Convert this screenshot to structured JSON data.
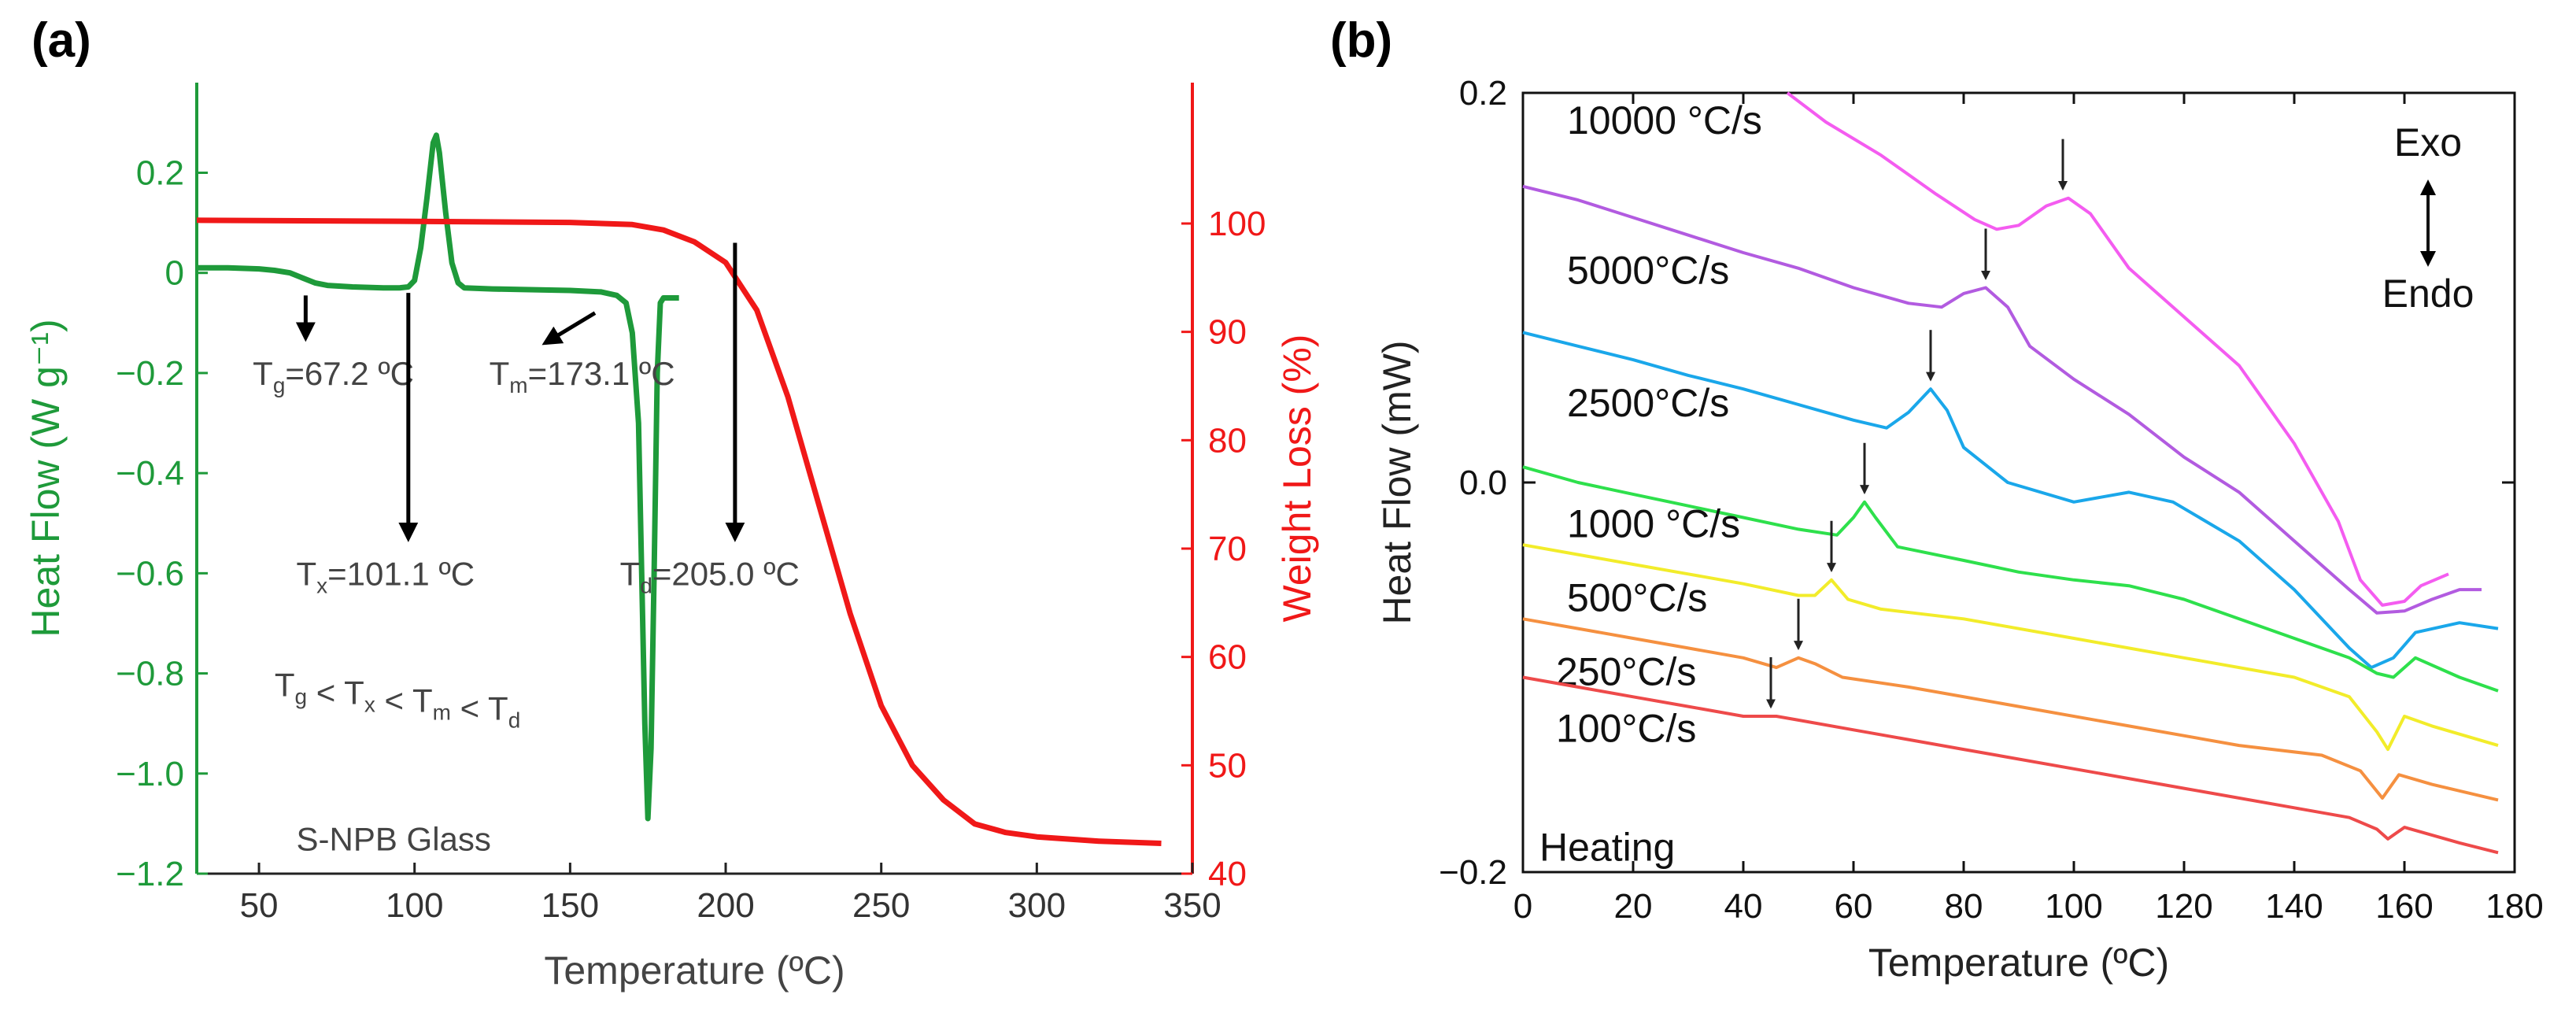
{
  "chart_data": [
    {
      "panel_label": "(a)",
      "type": "line",
      "xlabel": "Temperature (ºC)",
      "ylabel_left": "Heat Flow (W g⁻¹)",
      "ylabel_right": "Weight Loss (%)",
      "xlim": [
        30,
        350
      ],
      "ylim_left": [
        -1.2,
        0.38
      ],
      "ylim_right": [
        40,
        113
      ],
      "xticks": [
        50,
        100,
        150,
        200,
        250,
        300,
        350
      ],
      "yticks_left": [
        0.2,
        0,
        -0.2,
        -0.4,
        -0.6,
        -0.8,
        -1.0,
        -1.2
      ],
      "yticks_left_labels": [
        "0.2",
        "0",
        "−0.2",
        "−0.4",
        "−0.6",
        "−0.8",
        "−1.0",
        "−1.2"
      ],
      "yticks_right": [
        100,
        90,
        80,
        70,
        60,
        50,
        40
      ],
      "colors": {
        "heat_flow": "#1e9a3a",
        "weight_loss": "#f01818",
        "annotation": "#444444"
      },
      "series": [
        {
          "axis": "left",
          "points": [
            [
              30,
              0.01
            ],
            [
              40,
              0.01
            ],
            [
              50,
              0.008
            ],
            [
              55,
              0.005
            ],
            [
              60,
              0.0
            ],
            [
              64,
              -0.01
            ],
            [
              68,
              -0.02
            ],
            [
              72,
              -0.025
            ],
            [
              80,
              -0.028
            ],
            [
              90,
              -0.03
            ],
            [
              95,
              -0.03
            ],
            [
              98,
              -0.028
            ],
            [
              100,
              -0.015
            ],
            [
              102,
              0.05
            ],
            [
              104,
              0.15
            ],
            [
              106,
              0.26
            ],
            [
              107,
              0.275
            ],
            [
              108,
              0.24
            ],
            [
              110,
              0.12
            ],
            [
              112,
              0.02
            ],
            [
              114,
              -0.02
            ],
            [
              116,
              -0.03
            ],
            [
              125,
              -0.032
            ],
            [
              140,
              -0.034
            ],
            [
              150,
              -0.035
            ],
            [
              160,
              -0.038
            ],
            [
              165,
              -0.045
            ],
            [
              168,
              -0.06
            ],
            [
              170,
              -0.12
            ],
            [
              172,
              -0.3
            ],
            [
              173,
              -0.6
            ],
            [
              174,
              -0.9
            ],
            [
              175,
              -1.09
            ],
            [
              176,
              -0.95
            ],
            [
              177,
              -0.6
            ],
            [
              178,
              -0.2
            ],
            [
              179,
              -0.06
            ],
            [
              180,
              -0.05
            ],
            [
              185,
              -0.05
            ]
          ]
        },
        {
          "axis": "right",
          "points": [
            [
              30,
              100.3
            ],
            [
              100,
              100.2
            ],
            [
              150,
              100.1
            ],
            [
              170,
              99.9
            ],
            [
              180,
              99.4
            ],
            [
              190,
              98.3
            ],
            [
              200,
              96.4
            ],
            [
              210,
              92
            ],
            [
              220,
              84
            ],
            [
              230,
              74
            ],
            [
              240,
              64
            ],
            [
              250,
              55.5
            ],
            [
              260,
              50
            ],
            [
              270,
              46.8
            ],
            [
              280,
              44.6
            ],
            [
              290,
              43.8
            ],
            [
              300,
              43.4
            ],
            [
              320,
              43.0
            ],
            [
              340,
              42.8
            ]
          ]
        }
      ],
      "annotations": [
        {
          "main": "T",
          "sub": "g",
          "rest": "=67.2 ºC",
          "x": 48,
          "y": -0.2,
          "arrow": [
            [
              65,
              -0.045
            ],
            [
              65,
              -0.13
            ]
          ]
        },
        {
          "main": "T",
          "sub": "m",
          "rest": "=173.1 ºC",
          "x": 124,
          "y": -0.2,
          "arrow": [
            [
              158,
              -0.08
            ],
            [
              142,
              -0.14
            ]
          ]
        },
        {
          "main": "T",
          "sub": "x",
          "rest": "=101.1 ºC",
          "x": 62,
          "y": -0.6,
          "arrow": [
            [
              98,
              -0.04
            ],
            [
              98,
              -0.53
            ]
          ]
        },
        {
          "main": "T",
          "sub": "d",
          "rest": "=205.0 ºC",
          "x": 166,
          "y": -0.6,
          "arrow": [
            [
              203,
              0.06
            ],
            [
              203,
              -0.53
            ]
          ]
        }
      ],
      "inequality": [
        {
          "main": "T",
          "sub": "g"
        },
        {
          "op": " < "
        },
        {
          "main": "T",
          "sub": "x"
        },
        {
          "op": " < "
        },
        {
          "main": "T",
          "sub": "m"
        },
        {
          "op": "  < "
        },
        {
          "main": "T",
          "sub": "d"
        }
      ],
      "sample_label": "S-NPB Glass"
    },
    {
      "panel_label": "(b)",
      "type": "line",
      "xlabel": "Temperature (ºC)",
      "ylabel": "Heat Flow (mW)",
      "xlim": [
        0,
        180
      ],
      "ylim": [
        -0.2,
        0.2
      ],
      "xticks": [
        0,
        20,
        40,
        60,
        80,
        100,
        120,
        140,
        160,
        180
      ],
      "yticks": [
        0.2,
        0.0,
        -0.2
      ],
      "yticks_labels": [
        "0.2",
        "0.0",
        "−0.2"
      ],
      "exo_label": "Exo",
      "endo_label": "Endo",
      "heating_label": "Heating",
      "series": [
        {
          "name": "10000 °C/s",
          "color": "#f45cf0",
          "label_pos": [
            8,
            0.185
          ],
          "arrow_x": 98,
          "points": [
            [
              48,
              0.2
            ],
            [
              55,
              0.185
            ],
            [
              65,
              0.168
            ],
            [
              75,
              0.148
            ],
            [
              82,
              0.135
            ],
            [
              86,
              0.13
            ],
            [
              90,
              0.132
            ],
            [
              95,
              0.142
            ],
            [
              99,
              0.146
            ],
            [
              103,
              0.138
            ],
            [
              110,
              0.11
            ],
            [
              120,
              0.085
            ],
            [
              130,
              0.06
            ],
            [
              140,
              0.02
            ],
            [
              148,
              -0.02
            ],
            [
              152,
              -0.05
            ],
            [
              156,
              -0.063
            ],
            [
              160,
              -0.061
            ],
            [
              163,
              -0.053
            ],
            [
              168,
              -0.047
            ]
          ]
        },
        {
          "name": "5000°C/s",
          "color": "#b25be0",
          "label_pos": [
            8,
            0.108
          ],
          "arrow_x": 84,
          "points": [
            [
              0,
              0.152
            ],
            [
              10,
              0.145
            ],
            [
              20,
              0.136
            ],
            [
              30,
              0.127
            ],
            [
              40,
              0.118
            ],
            [
              50,
              0.11
            ],
            [
              60,
              0.1
            ],
            [
              70,
              0.092
            ],
            [
              76,
              0.09
            ],
            [
              80,
              0.097
            ],
            [
              84,
              0.1
            ],
            [
              88,
              0.09
            ],
            [
              92,
              0.07
            ],
            [
              100,
              0.053
            ],
            [
              110,
              0.035
            ],
            [
              120,
              0.013
            ],
            [
              130,
              -0.005
            ],
            [
              140,
              -0.03
            ],
            [
              150,
              -0.055
            ],
            [
              155,
              -0.067
            ],
            [
              160,
              -0.066
            ],
            [
              165,
              -0.06
            ],
            [
              170,
              -0.055
            ],
            [
              174,
              -0.055
            ]
          ]
        },
        {
          "name": "2500°C/s",
          "color": "#1aa7ea",
          "label_pos": [
            8,
            0.04
          ],
          "arrow_x": 74,
          "points": [
            [
              0,
              0.077
            ],
            [
              10,
              0.07
            ],
            [
              20,
              0.063
            ],
            [
              30,
              0.055
            ],
            [
              40,
              0.048
            ],
            [
              50,
              0.04
            ],
            [
              60,
              0.032
            ],
            [
              66,
              0.028
            ],
            [
              70,
              0.036
            ],
            [
              74,
              0.048
            ],
            [
              77,
              0.037
            ],
            [
              80,
              0.018
            ],
            [
              88,
              0.0
            ],
            [
              100,
              -0.01
            ],
            [
              110,
              -0.005
            ],
            [
              118,
              -0.01
            ],
            [
              130,
              -0.03
            ],
            [
              140,
              -0.055
            ],
            [
              150,
              -0.085
            ],
            [
              154,
              -0.095
            ],
            [
              158,
              -0.09
            ],
            [
              162,
              -0.077
            ],
            [
              170,
              -0.072
            ],
            [
              177,
              -0.075
            ]
          ]
        },
        {
          "name": "1000 °C/s",
          "color": "#2ee04c",
          "label_pos": [
            8,
            -0.022
          ],
          "arrow_x": 62,
          "points": [
            [
              0,
              0.008
            ],
            [
              10,
              0.0
            ],
            [
              20,
              -0.006
            ],
            [
              30,
              -0.012
            ],
            [
              40,
              -0.018
            ],
            [
              50,
              -0.024
            ],
            [
              57,
              -0.027
            ],
            [
              60,
              -0.018
            ],
            [
              62,
              -0.01
            ],
            [
              64,
              -0.018
            ],
            [
              68,
              -0.033
            ],
            [
              80,
              -0.04
            ],
            [
              90,
              -0.046
            ],
            [
              100,
              -0.05
            ],
            [
              110,
              -0.053
            ],
            [
              120,
              -0.06
            ],
            [
              130,
              -0.07
            ],
            [
              140,
              -0.08
            ],
            [
              150,
              -0.09
            ],
            [
              155,
              -0.098
            ],
            [
              158,
              -0.1
            ],
            [
              162,
              -0.09
            ],
            [
              170,
              -0.1
            ],
            [
              177,
              -0.107
            ]
          ]
        },
        {
          "name": "500°C/s",
          "color": "#f2ec2a",
          "label_pos": [
            8,
            -0.06
          ],
          "arrow_x": 56,
          "points": [
            [
              0,
              -0.032
            ],
            [
              10,
              -0.037
            ],
            [
              20,
              -0.042
            ],
            [
              30,
              -0.047
            ],
            [
              40,
              -0.052
            ],
            [
              50,
              -0.058
            ],
            [
              53,
              -0.058
            ],
            [
              56,
              -0.05
            ],
            [
              59,
              -0.06
            ],
            [
              65,
              -0.065
            ],
            [
              80,
              -0.07
            ],
            [
              100,
              -0.08
            ],
            [
              120,
              -0.09
            ],
            [
              140,
              -0.1
            ],
            [
              150,
              -0.11
            ],
            [
              155,
              -0.128
            ],
            [
              157,
              -0.137
            ],
            [
              160,
              -0.12
            ],
            [
              165,
              -0.125
            ],
            [
              177,
              -0.135
            ]
          ]
        },
        {
          "name": "250°C/s",
          "color": "#f59040",
          "label_pos": [
            6,
            -0.098
          ],
          "arrow_x": 50,
          "points": [
            [
              0,
              -0.07
            ],
            [
              10,
              -0.075
            ],
            [
              20,
              -0.08
            ],
            [
              30,
              -0.085
            ],
            [
              40,
              -0.09
            ],
            [
              46,
              -0.095
            ],
            [
              50,
              -0.09
            ],
            [
              53,
              -0.093
            ],
            [
              58,
              -0.1
            ],
            [
              70,
              -0.105
            ],
            [
              90,
              -0.115
            ],
            [
              110,
              -0.125
            ],
            [
              130,
              -0.135
            ],
            [
              145,
              -0.14
            ],
            [
              152,
              -0.148
            ],
            [
              156,
              -0.162
            ],
            [
              159,
              -0.15
            ],
            [
              165,
              -0.155
            ],
            [
              177,
              -0.163
            ]
          ]
        },
        {
          "name": "100°C/s",
          "color": "#ee4a4a",
          "label_pos": [
            6,
            -0.127
          ],
          "arrow_x": 45,
          "points": [
            [
              0,
              -0.1
            ],
            [
              10,
              -0.105
            ],
            [
              20,
              -0.11
            ],
            [
              30,
              -0.115
            ],
            [
              40,
              -0.12
            ],
            [
              44,
              -0.12
            ],
            [
              46,
              -0.12
            ],
            [
              50,
              -0.122
            ],
            [
              60,
              -0.127
            ],
            [
              80,
              -0.137
            ],
            [
              100,
              -0.147
            ],
            [
              120,
              -0.157
            ],
            [
              140,
              -0.167
            ],
            [
              150,
              -0.172
            ],
            [
              155,
              -0.178
            ],
            [
              157,
              -0.183
            ],
            [
              160,
              -0.177
            ],
            [
              170,
              -0.185
            ],
            [
              177,
              -0.19
            ]
          ]
        }
      ]
    }
  ]
}
